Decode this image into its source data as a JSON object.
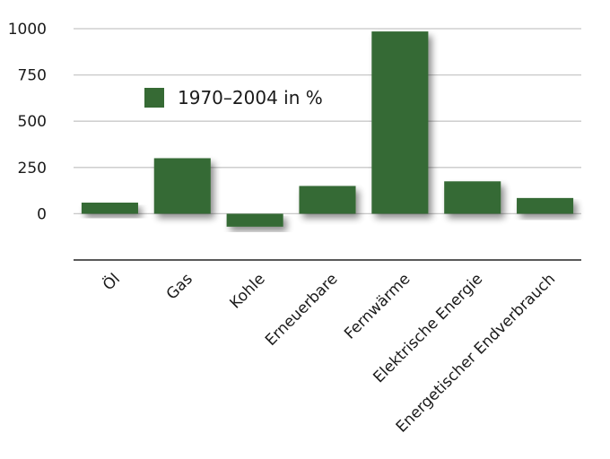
{
  "chart_data": {
    "type": "bar",
    "title": "",
    "xlabel": "",
    "ylabel": "",
    "categories": [
      "Öl",
      "Gas",
      "Kohle",
      "Erneuerbare",
      "Fernwärme",
      "Elektrische Energie",
      "Energetischer Endverbrauch"
    ],
    "series": [
      {
        "name": "1970–2004 in %",
        "values": [
          60,
          300,
          -70,
          150,
          985,
          175,
          85
        ]
      }
    ],
    "ylim": [
      -250,
      1000
    ],
    "yticks": [
      0,
      250,
      500,
      750,
      1000
    ],
    "ytick_labels": [
      "0",
      "250",
      "500",
      "750",
      "1000"
    ],
    "grid": true,
    "legend_position": "top-left",
    "colors": {
      "bar": "#366a34",
      "grid": "#c8c8c8",
      "axis": "#222222",
      "text": "#1a1a1a"
    }
  }
}
